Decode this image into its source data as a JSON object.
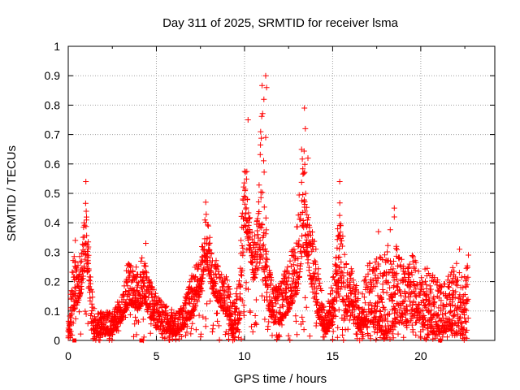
{
  "chart_data": {
    "type": "scatter",
    "title": "Day 311 of 2025, SRMTID for receiver lsma",
    "xlabel": "GPS time / hours",
    "ylabel": "SRMTID / TECUs",
    "xlim": [
      0,
      24.2
    ],
    "ylim": [
      0,
      1
    ],
    "x_ticks": [
      0,
      5,
      10,
      15,
      20
    ],
    "x_tick_labels": [
      "0",
      "5",
      "10",
      "15",
      "20"
    ],
    "y_ticks": [
      0,
      0.1,
      0.2,
      0.3,
      0.4,
      0.5,
      0.6,
      0.7,
      0.8,
      0.9,
      1
    ],
    "y_tick_labels": [
      "0",
      "0.1",
      "0.2",
      "0.3",
      "0.4",
      "0.5",
      "0.6",
      "0.7",
      "0.8",
      "0.9",
      "1"
    ],
    "grid": true,
    "series": [
      {
        "name": "SRMTID",
        "marker": "plus",
        "color": "#ff0000",
        "envelope_x": [
          0,
          0.3,
          0.5,
          0.8,
          1.0,
          1.1,
          1.3,
          1.5,
          2.0,
          2.5,
          3.0,
          3.4,
          3.6,
          4.0,
          4.3,
          4.5,
          5.0,
          5.5,
          6.0,
          6.5,
          7.0,
          7.5,
          7.8,
          8.2,
          8.6,
          9.0,
          9.3,
          9.7,
          10.0,
          10.2,
          10.5,
          10.8,
          11.0,
          11.1,
          11.3,
          11.6,
          12.0,
          12.5,
          13.0,
          13.3,
          13.5,
          13.7,
          14.0,
          14.3,
          14.6,
          15.0,
          15.4,
          15.7,
          16.0,
          16.5,
          17.0,
          17.5,
          18.0,
          18.4,
          18.8,
          19.2,
          19.6,
          20.0,
          20.4,
          20.8,
          21.2,
          21.6,
          22.0,
          22.4,
          22.7
        ],
        "envelope_hi": [
          0.06,
          0.3,
          0.26,
          0.32,
          0.52,
          0.36,
          0.2,
          0.1,
          0.1,
          0.1,
          0.14,
          0.28,
          0.25,
          0.25,
          0.3,
          0.22,
          0.16,
          0.12,
          0.1,
          0.12,
          0.22,
          0.3,
          0.46,
          0.3,
          0.24,
          0.22,
          0.14,
          0.2,
          0.72,
          0.5,
          0.34,
          0.5,
          0.88,
          0.6,
          0.3,
          0.18,
          0.2,
          0.26,
          0.4,
          0.76,
          0.56,
          0.42,
          0.34,
          0.2,
          0.1,
          0.2,
          0.48,
          0.3,
          0.26,
          0.16,
          0.26,
          0.3,
          0.3,
          0.42,
          0.3,
          0.26,
          0.3,
          0.24,
          0.26,
          0.22,
          0.2,
          0.22,
          0.28,
          0.22,
          0.28
        ],
        "envelope_lo": [
          0.0,
          0.1,
          0.12,
          0.18,
          0.3,
          0.2,
          0.03,
          0.02,
          0.02,
          0.03,
          0.06,
          0.12,
          0.12,
          0.1,
          0.14,
          0.1,
          0.04,
          0.03,
          0.02,
          0.04,
          0.08,
          0.16,
          0.28,
          0.16,
          0.12,
          0.08,
          0.02,
          0.04,
          0.4,
          0.34,
          0.2,
          0.24,
          0.3,
          0.24,
          0.12,
          0.06,
          0.06,
          0.1,
          0.16,
          0.3,
          0.3,
          0.22,
          0.12,
          0.06,
          0.02,
          0.06,
          0.18,
          0.1,
          0.08,
          0.04,
          0.06,
          0.04,
          0.02,
          0.04,
          0.06,
          0.06,
          0.06,
          0.06,
          0.04,
          0.02,
          0.02,
          0.04,
          0.02,
          0.02,
          0.04
        ],
        "outliers": [
          {
            "x": 0.4,
            "y": 0.34
          },
          {
            "x": 1.0,
            "y": 0.54
          },
          {
            "x": 2.8,
            "y": 0.13
          },
          {
            "x": 4.4,
            "y": 0.33
          },
          {
            "x": 7.8,
            "y": 0.47
          },
          {
            "x": 10.2,
            "y": 0.75
          },
          {
            "x": 11.2,
            "y": 0.9
          },
          {
            "x": 11.25,
            "y": 0.86
          },
          {
            "x": 11.1,
            "y": 0.82
          },
          {
            "x": 11.2,
            "y": 0.69
          },
          {
            "x": 13.4,
            "y": 0.79
          },
          {
            "x": 13.45,
            "y": 0.72
          },
          {
            "x": 13.6,
            "y": 0.62
          },
          {
            "x": 15.4,
            "y": 0.54
          },
          {
            "x": 17.6,
            "y": 0.37
          },
          {
            "x": 18.5,
            "y": 0.45
          },
          {
            "x": 18.5,
            "y": 0.42
          },
          {
            "x": 22.2,
            "y": 0.31
          },
          {
            "x": 22.7,
            "y": 0.29
          }
        ]
      }
    ],
    "zero_markers": [
      {
        "x": 0.35,
        "y": 0.0
      },
      {
        "x": 4.15,
        "y": 0.0
      },
      {
        "x": 21.1,
        "y": 0.0
      }
    ]
  }
}
